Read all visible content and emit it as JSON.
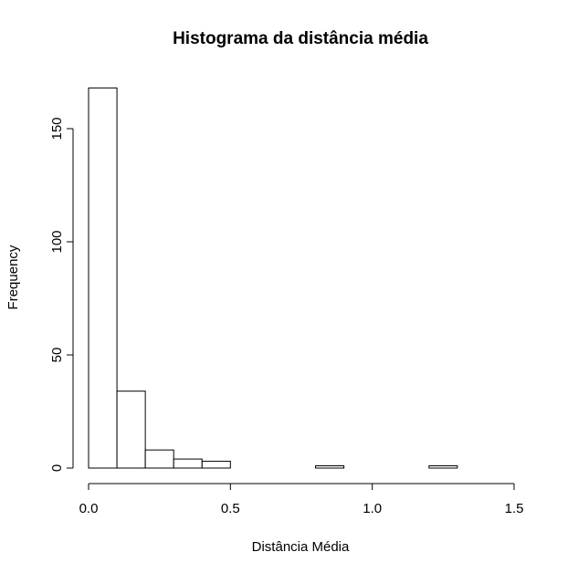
{
  "chart_data": {
    "type": "bar",
    "title": "Histograma da distância média",
    "xlabel": "Distância Média",
    "ylabel": "Frequency",
    "xlim": [
      0,
      1.5
    ],
    "ylim": [
      0,
      168
    ],
    "x_ticks": [
      0,
      0.5,
      1.0,
      1.5
    ],
    "x_tick_labels": [
      "0.0",
      "0.5",
      "1.0",
      "1.5"
    ],
    "y_ticks": [
      0,
      50,
      100,
      150
    ],
    "y_tick_labels": [
      "0",
      "50",
      "100",
      "150"
    ],
    "grid": false,
    "legend": "none",
    "bins": [
      {
        "start": 0.0,
        "end": 0.1,
        "count": 168
      },
      {
        "start": 0.1,
        "end": 0.2,
        "count": 34
      },
      {
        "start": 0.2,
        "end": 0.3,
        "count": 8
      },
      {
        "start": 0.3,
        "end": 0.4,
        "count": 4
      },
      {
        "start": 0.4,
        "end": 0.5,
        "count": 3
      },
      {
        "start": 0.5,
        "end": 0.6,
        "count": 0
      },
      {
        "start": 0.6,
        "end": 0.7,
        "count": 0
      },
      {
        "start": 0.7,
        "end": 0.8,
        "count": 0
      },
      {
        "start": 0.8,
        "end": 0.9,
        "count": 1
      },
      {
        "start": 0.9,
        "end": 1.0,
        "count": 0
      },
      {
        "start": 1.0,
        "end": 1.1,
        "count": 0
      },
      {
        "start": 1.1,
        "end": 1.2,
        "count": 0
      },
      {
        "start": 1.2,
        "end": 1.3,
        "count": 1
      }
    ]
  }
}
